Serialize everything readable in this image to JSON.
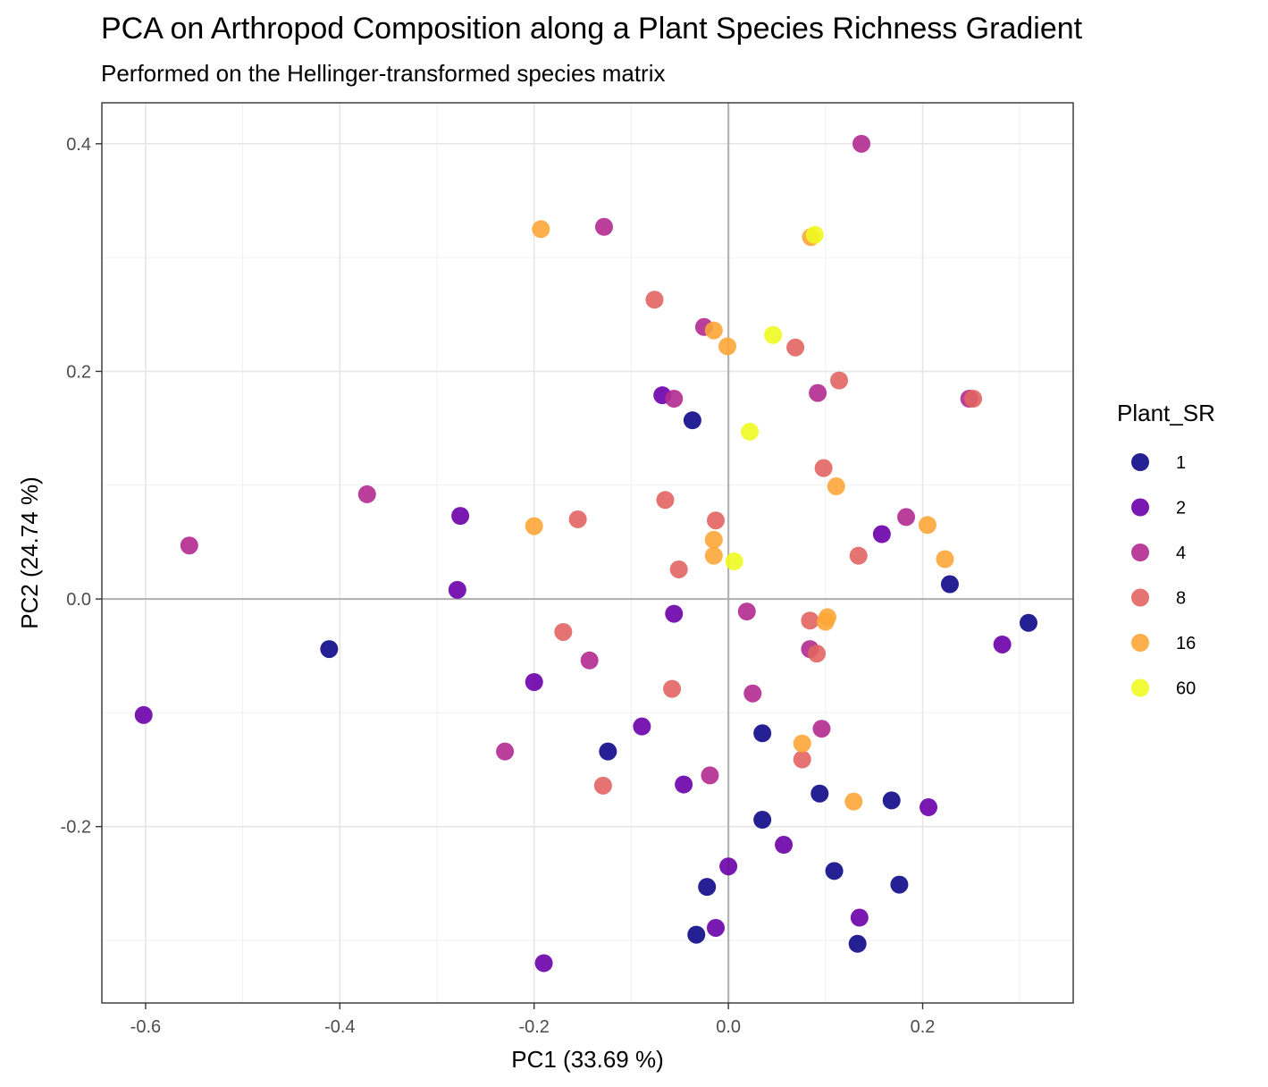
{
  "chart_data": {
    "type": "scatter",
    "title": "PCA on Arthropod Composition along a Plant Species Richness Gradient",
    "subtitle": "Performed on the Hellinger-transformed species matrix",
    "xlabel": "PC1 (33.69 %)",
    "ylabel": "PC2 (24.74 %)",
    "xlim": [
      -0.645,
      0.355
    ],
    "ylim": [
      -0.355,
      0.436
    ],
    "x_ticks": [
      -0.6,
      -0.4,
      -0.2,
      0.0,
      0.2
    ],
    "x_tick_labels": [
      "-0.6",
      "-0.4",
      "-0.2",
      "0.0",
      "0.2"
    ],
    "y_ticks": [
      -0.2,
      0.0,
      0.2,
      0.4
    ],
    "y_tick_labels": [
      "-0.2",
      "0.0",
      "0.2",
      "0.4"
    ],
    "grid": true,
    "reference_lines": {
      "x": 0,
      "y": 0
    },
    "legend": {
      "title": "Plant_SR",
      "position": "right",
      "entries": [
        {
          "label": "1",
          "color": "#0d0887"
        },
        {
          "label": "2",
          "color": "#6a00a8"
        },
        {
          "label": "4",
          "color": "#b12a90"
        },
        {
          "label": "8",
          "color": "#e16462"
        },
        {
          "label": "16",
          "color": "#fca636"
        },
        {
          "label": "60",
          "color": "#f0f921"
        }
      ]
    },
    "series": [
      {
        "name": "1",
        "color": "#0d0887",
        "points": [
          [
            -0.037,
            0.157
          ],
          [
            0.228,
            0.013
          ],
          [
            0.309,
            -0.021
          ],
          [
            -0.411,
            -0.044
          ],
          [
            -0.124,
            -0.134
          ],
          [
            0.035,
            -0.118
          ],
          [
            0.094,
            -0.171
          ],
          [
            0.168,
            -0.177
          ],
          [
            0.035,
            -0.194
          ],
          [
            0.109,
            -0.239
          ],
          [
            -0.022,
            -0.253
          ],
          [
            0.176,
            -0.251
          ],
          [
            -0.033,
            -0.295
          ],
          [
            0.133,
            -0.303
          ]
        ]
      },
      {
        "name": "2",
        "color": "#6a00a8",
        "points": [
          [
            -0.068,
            0.179
          ],
          [
            -0.276,
            0.073
          ],
          [
            -0.279,
            0.008
          ],
          [
            0.158,
            0.057
          ],
          [
            -0.056,
            -0.013
          ],
          [
            0.282,
            -0.04
          ],
          [
            -0.2,
            -0.073
          ],
          [
            -0.089,
            -0.112
          ],
          [
            -0.046,
            -0.163
          ],
          [
            0.206,
            -0.183
          ],
          [
            0.057,
            -0.216
          ],
          [
            0.0,
            -0.235
          ],
          [
            0.135,
            -0.28
          ],
          [
            -0.013,
            -0.289
          ],
          [
            -0.19,
            -0.32
          ],
          [
            -0.602,
            -0.102
          ]
        ]
      },
      {
        "name": "4",
        "color": "#b12a90",
        "points": [
          [
            0.137,
            0.4
          ],
          [
            -0.128,
            0.327
          ],
          [
            -0.025,
            0.239
          ],
          [
            -0.056,
            0.176
          ],
          [
            0.092,
            0.181
          ],
          [
            0.248,
            0.176
          ],
          [
            -0.372,
            0.092
          ],
          [
            -0.555,
            0.047
          ],
          [
            0.183,
            0.072
          ],
          [
            0.019,
            -0.011
          ],
          [
            0.084,
            -0.044
          ],
          [
            -0.143,
            -0.054
          ],
          [
            0.025,
            -0.083
          ],
          [
            -0.23,
            -0.134
          ],
          [
            0.096,
            -0.114
          ],
          [
            -0.019,
            -0.155
          ]
        ]
      },
      {
        "name": "8",
        "color": "#e16462",
        "points": [
          [
            -0.076,
            0.263
          ],
          [
            0.069,
            0.221
          ],
          [
            0.114,
            0.192
          ],
          [
            0.098,
            0.115
          ],
          [
            -0.065,
            0.087
          ],
          [
            -0.155,
            0.07
          ],
          [
            -0.013,
            0.069
          ],
          [
            -0.051,
            0.026
          ],
          [
            0.134,
            0.038
          ],
          [
            0.084,
            -0.019
          ],
          [
            0.091,
            -0.048
          ],
          [
            -0.17,
            -0.029
          ],
          [
            -0.058,
            -0.079
          ],
          [
            0.076,
            -0.141
          ],
          [
            -0.129,
            -0.164
          ],
          [
            0.252,
            0.176
          ]
        ]
      },
      {
        "name": "16",
        "color": "#fca636",
        "points": [
          [
            -0.193,
            0.325
          ],
          [
            0.085,
            0.318
          ],
          [
            -0.015,
            0.236
          ],
          [
            -0.001,
            0.222
          ],
          [
            0.111,
            0.099
          ],
          [
            -0.2,
            0.064
          ],
          [
            -0.015,
            0.052
          ],
          [
            -0.015,
            0.038
          ],
          [
            0.205,
            0.065
          ],
          [
            0.223,
            0.035
          ],
          [
            0.102,
            -0.016
          ],
          [
            0.1,
            -0.02
          ],
          [
            0.076,
            -0.127
          ],
          [
            0.129,
            -0.178
          ]
        ]
      },
      {
        "name": "60",
        "color": "#f0f921",
        "points": [
          [
            0.089,
            0.32
          ],
          [
            0.046,
            0.232
          ],
          [
            0.022,
            0.147
          ],
          [
            0.006,
            0.033
          ]
        ]
      }
    ]
  }
}
